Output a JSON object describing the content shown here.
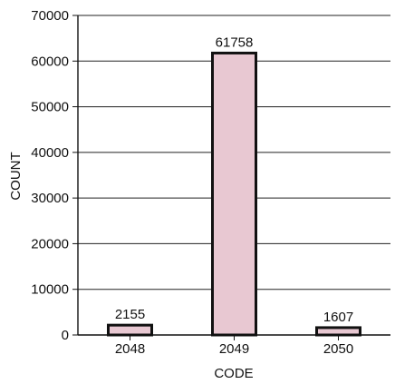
{
  "chart_data": {
    "type": "bar",
    "title": "",
    "xlabel": "CODE",
    "ylabel": "COUNT",
    "categories": [
      "2048",
      "2049",
      "2050"
    ],
    "values": [
      2155,
      61758,
      1607
    ],
    "data_labels": [
      "2155",
      "61758",
      "1607"
    ],
    "ylim": [
      0,
      70000
    ],
    "yticks": [
      0,
      10000,
      20000,
      30000,
      40000,
      50000,
      60000,
      70000
    ],
    "ytick_labels": [
      "0",
      "10000",
      "20000",
      "30000",
      "40000",
      "50000",
      "60000",
      "70000"
    ],
    "grid": "horizontal",
    "legend": "none",
    "colors": {
      "bar_fill": "#e8c8d2",
      "bar_stroke": "#111111",
      "grid": "#222222",
      "axis": "#111111",
      "text": "#111111",
      "background": "#ffffff"
    }
  }
}
